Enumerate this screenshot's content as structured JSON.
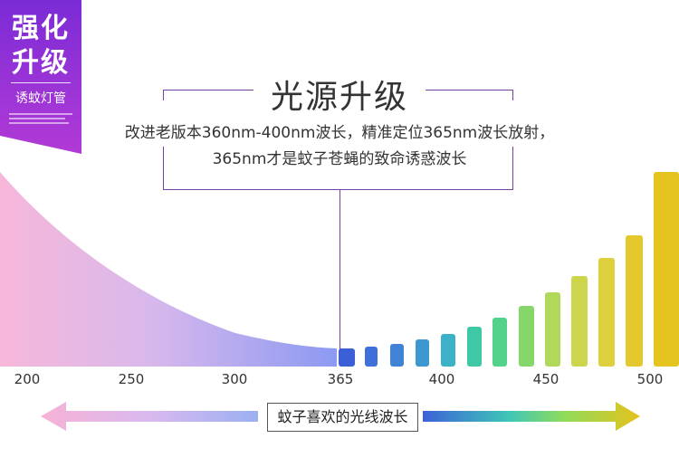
{
  "badge": {
    "line1": "强化",
    "line2": "升级",
    "subtitle": "诱蚊灯管",
    "color_top": "#7b2bd6",
    "color_bottom": "#b23ad6"
  },
  "headline": {
    "title": "光源升级",
    "desc_line1": "改进老版本360nm-400nm波长，精准定位365nm波长放射，",
    "desc_line2": "365nm才是蚊子苍蝇的致命诱惑波长",
    "frame_color": "#7a3fa6"
  },
  "spectrum": {
    "ticks": [
      "200",
      "250",
      "300",
      "365",
      "400",
      "450",
      "500"
    ],
    "highlight_tick": "365",
    "colors": {
      "left_pink": "#f6b8d8",
      "mid_blue": "#8f9cf2",
      "uv_blue": "#3a5fd6",
      "green": "#3fd08a",
      "yellow": "#e8c420"
    }
  },
  "bottom": {
    "label": "蚊子喜欢的光线波长"
  }
}
